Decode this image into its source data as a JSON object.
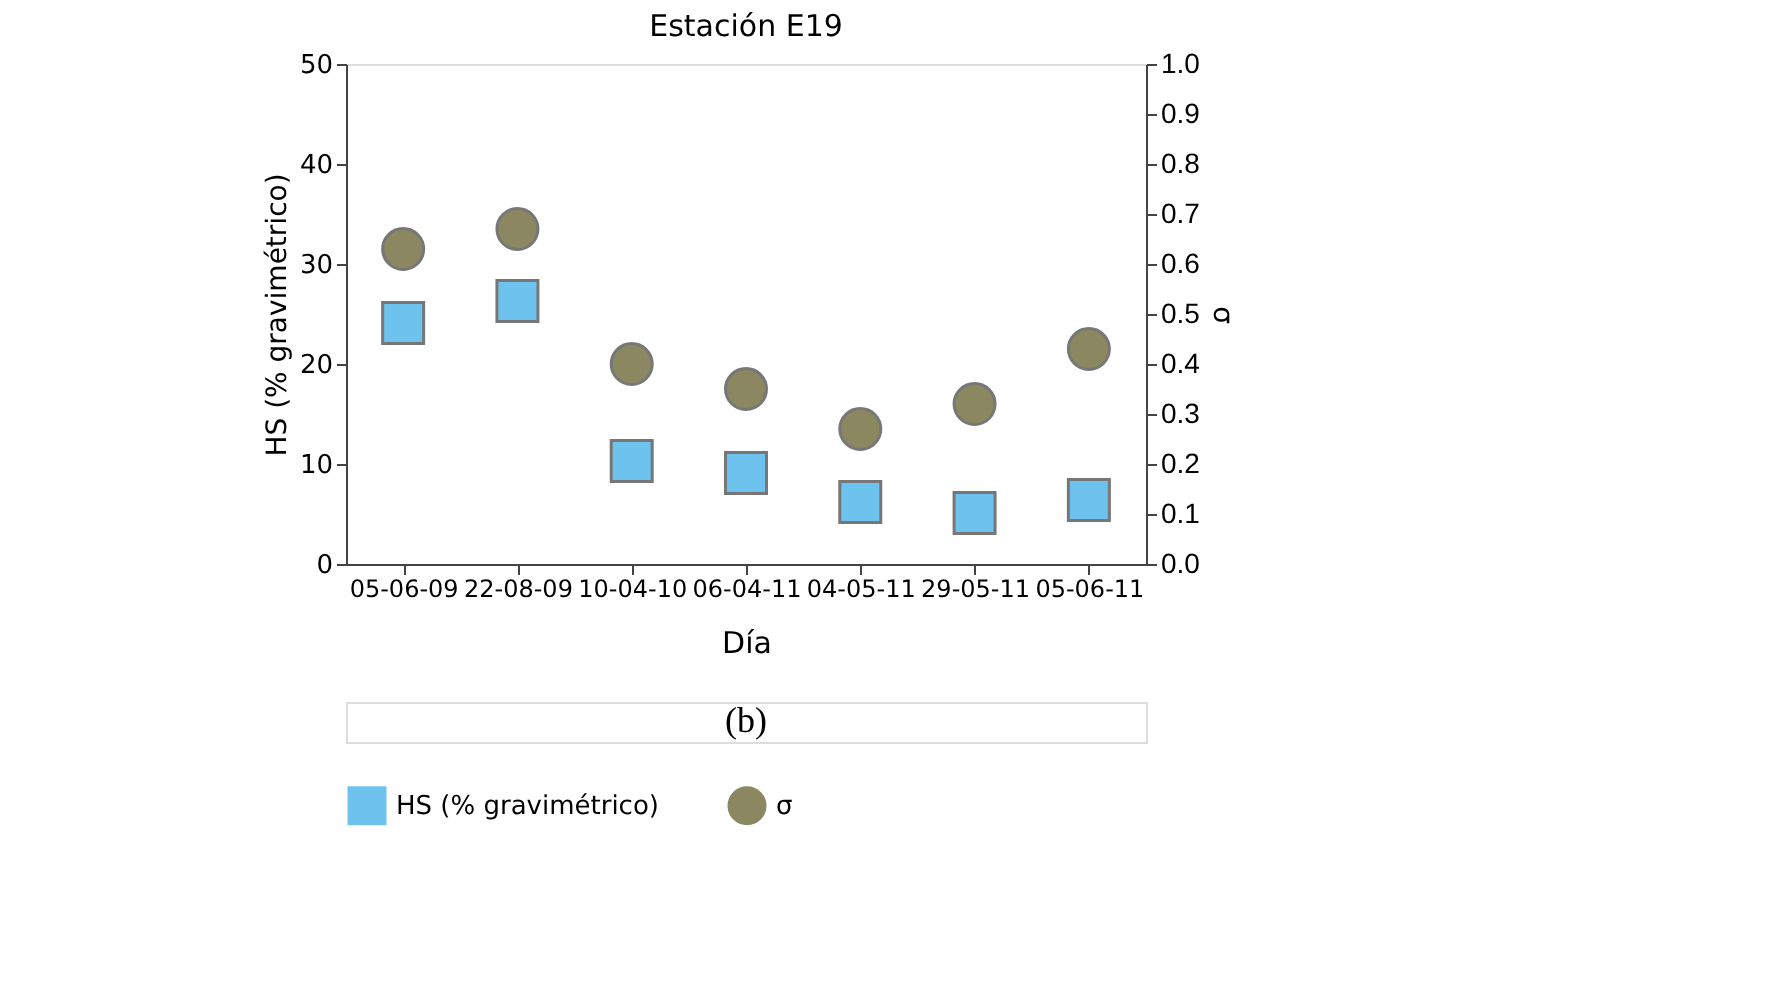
{
  "chart_data": {
    "type": "scatter",
    "title": "Estación E19",
    "xlabel": "Día",
    "ylabel": "HS (% gravimétrico)",
    "y2label": "σ",
    "categories": [
      "05-06-09",
      "22-08-09",
      "10-04-10",
      "06-04-11",
      "04-05-11",
      "29-05-11",
      "05-06-11"
    ],
    "series": [
      {
        "name": "HS (% gravimétrico)",
        "color": "#6ec3ee",
        "marker": "square",
        "values": [
          24.1,
          26.3,
          10.3,
          9.1,
          6.2,
          5.1,
          6.4
        ]
      },
      {
        "name": "σ",
        "color": "#8b8760",
        "marker": "circle",
        "axis": "y2",
        "values": [
          0.63,
          0.67,
          0.4,
          0.35,
          0.27,
          0.32,
          0.43
        ]
      }
    ],
    "ylim": [
      0,
      50
    ],
    "yticks": [
      0,
      10,
      20,
      30,
      40,
      50
    ],
    "y2lim": [
      0,
      1
    ],
    "y2ticks": [
      {
        "value": 0,
        "label": "0.0"
      },
      0.1,
      0.2,
      0.3,
      0.4,
      0.5,
      0.6,
      0.7,
      0.8,
      0.9,
      {
        "value": 1,
        "label": "1.0"
      }
    ],
    "grid": false,
    "legend": "bottom",
    "annotations": [
      "(b)"
    ]
  }
}
